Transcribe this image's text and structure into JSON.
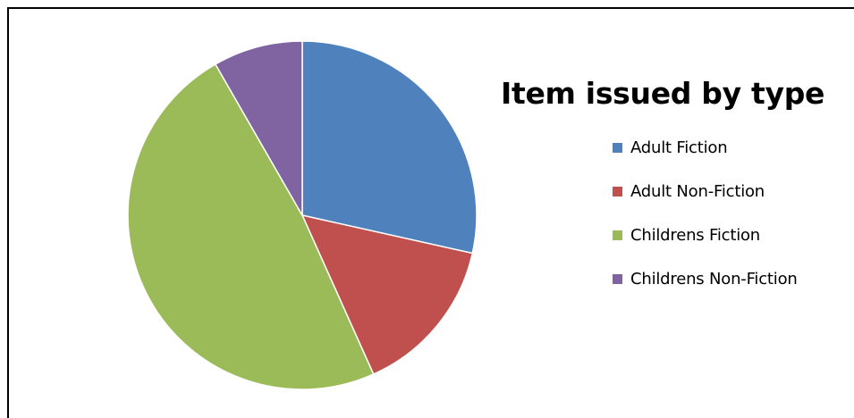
{
  "chart_data": {
    "type": "pie",
    "title": "Item issued by type",
    "legend_position": "right",
    "categories": [
      "Adult Fiction",
      "Adult Non-Fiction",
      "Childrens Fiction",
      "Childrens Non-Fiction"
    ],
    "values": [
      28.5,
      14.8,
      48.4,
      8.3
    ],
    "colors": [
      "#4F81BD",
      "#C0504D",
      "#9BBB59",
      "#8064A2"
    ]
  }
}
